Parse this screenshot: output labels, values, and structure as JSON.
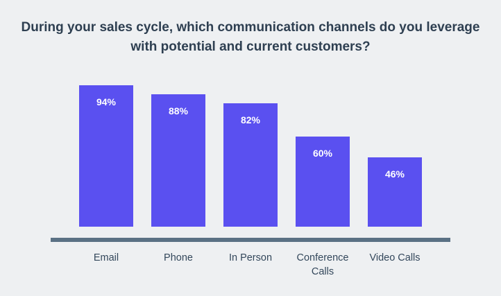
{
  "title": "During your sales cycle, which communication channels do you leverage with potential and current customers?",
  "colors": {
    "bar": "#5a50f0",
    "axis": "#5a7184",
    "background": "#eef0f2",
    "title_text": "#2e3f51",
    "category_text": "#33475b",
    "value_text": "#ffffff"
  },
  "chart_data": {
    "type": "bar",
    "title": "During your sales cycle, which communication channels do you leverage with potential and current customers?",
    "categories": [
      "Email",
      "Phone",
      "In Person",
      "Conference Calls",
      "Video Calls"
    ],
    "values": [
      94,
      88,
      82,
      60,
      46
    ],
    "value_suffix": "%",
    "xlabel": "",
    "ylabel": "",
    "ylim": [
      0,
      100
    ],
    "grid": false,
    "legend": false,
    "orientation": "vertical",
    "value_label_position": "inside-top"
  }
}
